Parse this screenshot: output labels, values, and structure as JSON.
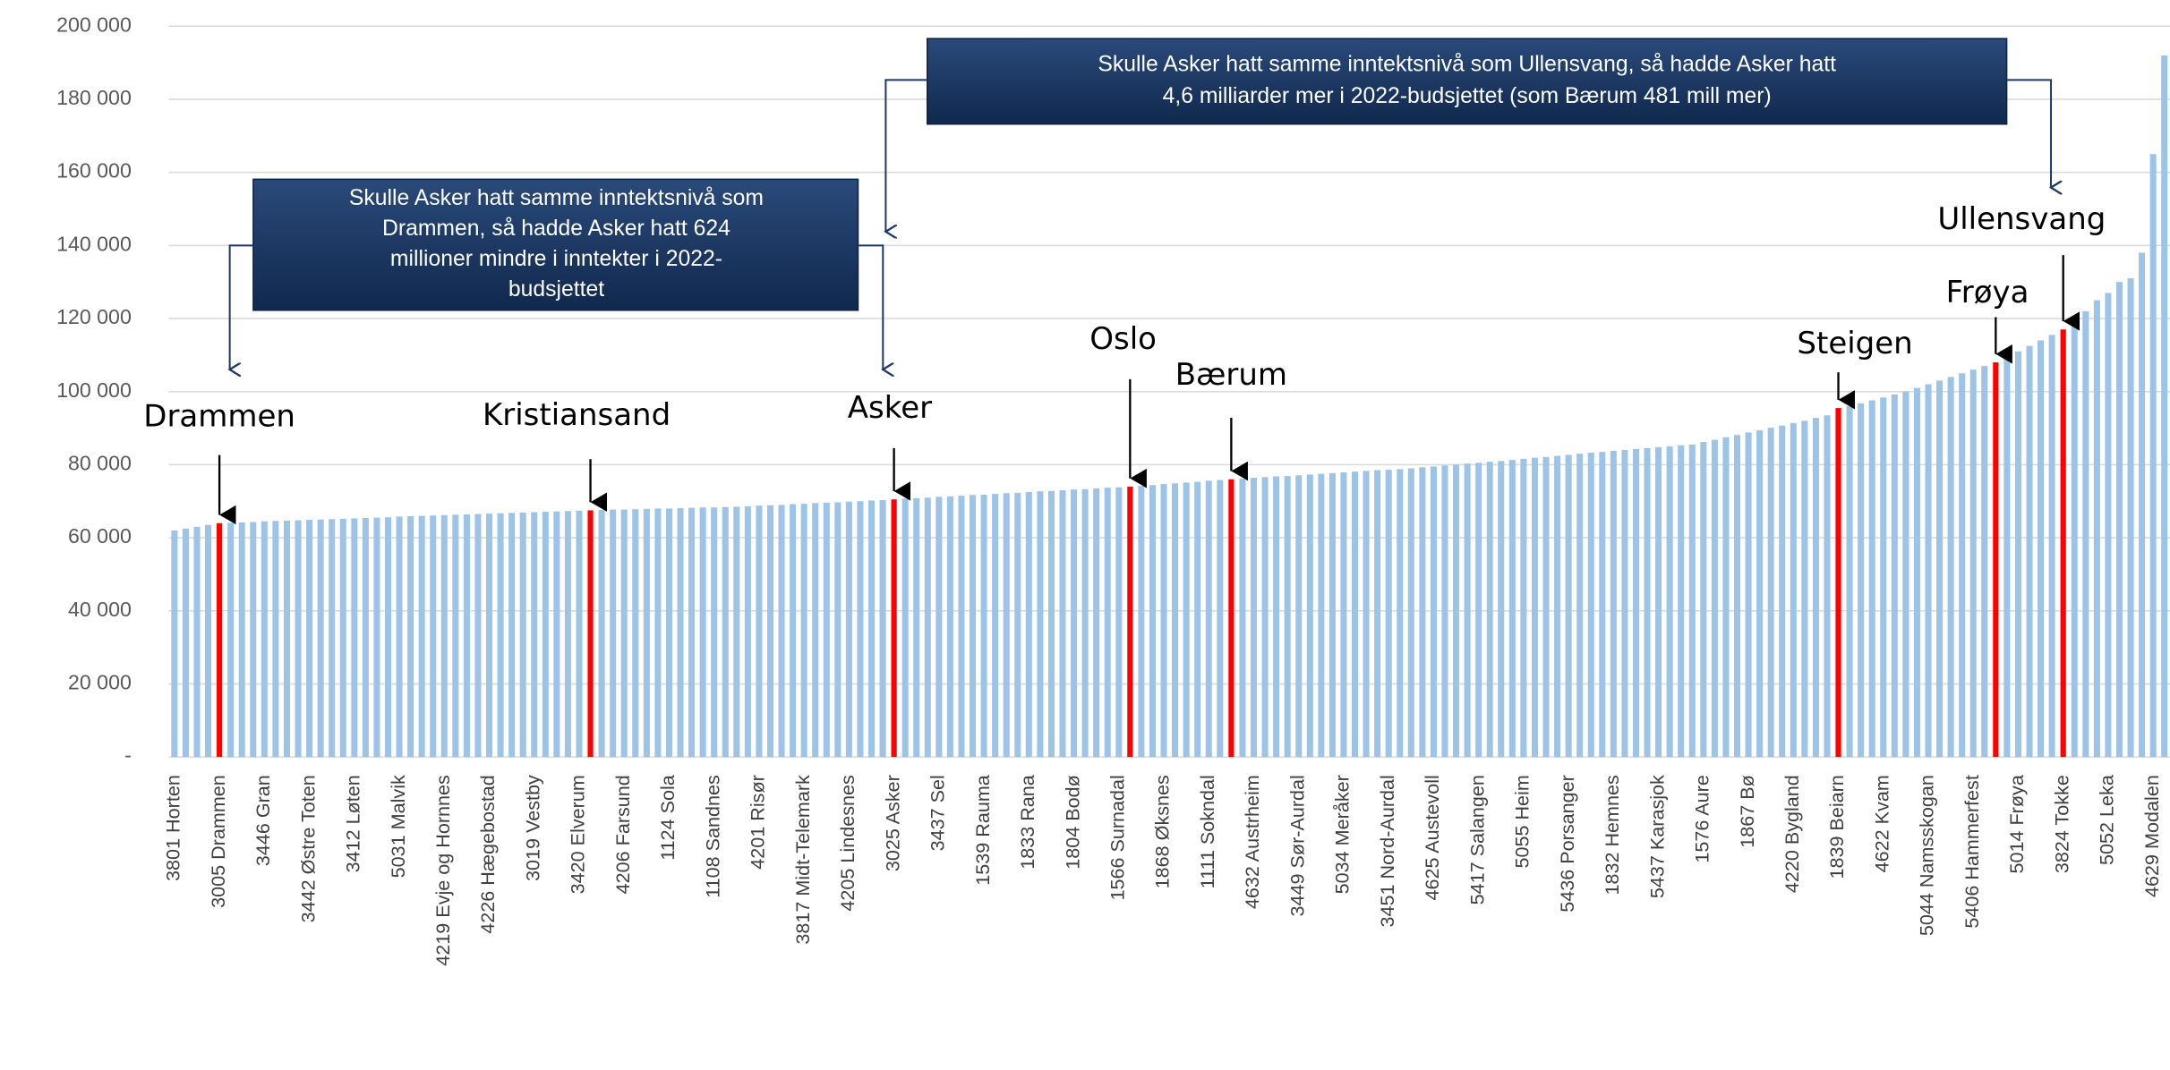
{
  "chart_data": {
    "type": "bar",
    "categories": [
      "3801 Horten",
      null,
      null,
      null,
      "3005 Drammen",
      null,
      null,
      null,
      "3446 Gran",
      null,
      null,
      null,
      "3442 Østre Toten",
      null,
      null,
      null,
      "3412 Løten",
      null,
      null,
      null,
      "5031 Malvik",
      null,
      null,
      null,
      "4219 Evje og Hornnes",
      null,
      null,
      null,
      "4226 Hægebostad",
      null,
      null,
      null,
      "3019 Vestby",
      null,
      null,
      null,
      "3420 Elverum",
      null,
      null,
      null,
      "4206 Farsund",
      null,
      null,
      null,
      "1124 Sola",
      null,
      null,
      null,
      "1108 Sandnes",
      null,
      null,
      null,
      "4201 Risør",
      null,
      null,
      null,
      "3817 Midt-Telemark",
      null,
      null,
      null,
      "4205 Lindesnes",
      null,
      null,
      null,
      "3025 Asker",
      null,
      null,
      null,
      "3437 Sel",
      null,
      null,
      null,
      "1539 Rauma",
      null,
      null,
      null,
      "1833 Rana",
      null,
      null,
      null,
      "1804 Bodø",
      null,
      null,
      null,
      "1566 Surnadal",
      null,
      null,
      null,
      "1868 Øksnes",
      null,
      null,
      null,
      "1111 Sokndal",
      null,
      null,
      null,
      "4632 Austrheim",
      null,
      null,
      null,
      "3449 Sør-Aurdal",
      null,
      null,
      null,
      "5034 Meråker",
      null,
      null,
      null,
      "3451 Nord-Aurdal",
      null,
      null,
      null,
      "4625 Austevoll",
      null,
      null,
      null,
      "5417 Salangen",
      null,
      null,
      null,
      "5055 Heim",
      null,
      null,
      null,
      "5436 Porsanger",
      null,
      null,
      null,
      "1832 Hemnes",
      null,
      null,
      null,
      "5437 Karasjok",
      null,
      null,
      null,
      "1576 Aure",
      null,
      null,
      null,
      "1867 Bø",
      null,
      null,
      null,
      "4220 Bygland",
      null,
      null,
      null,
      "1839 Beiarn",
      null,
      null,
      null,
      "4622 Kvam",
      null,
      null,
      null,
      "5044 Namsskogan",
      null,
      null,
      null,
      "5406 Hammerfest",
      null,
      null,
      null,
      "5014 Frøya",
      null,
      null,
      null,
      "3824 Tokke",
      null,
      null,
      null,
      "5052 Leka",
      null,
      null,
      null,
      "4629 Modalen",
      null
    ],
    "values": [
      62000,
      62500,
      63000,
      63500,
      64000,
      64100,
      64200,
      64300,
      64500,
      64600,
      64700,
      64800,
      64900,
      65000,
      65100,
      65200,
      65300,
      65400,
      65500,
      65600,
      65800,
      65900,
      66000,
      66100,
      66200,
      66300,
      66400,
      66500,
      66600,
      66700,
      66800,
      66900,
      67000,
      67100,
      67200,
      67300,
      67400,
      67500,
      67600,
      67700,
      67700,
      67800,
      67900,
      68000,
      68000,
      68100,
      68200,
      68300,
      68300,
      68400,
      68500,
      68600,
      68800,
      68900,
      69000,
      69200,
      69300,
      69500,
      69600,
      69700,
      69900,
      70000,
      70200,
      70300,
      70500,
      70700,
      70800,
      71000,
      71200,
      71300,
      71500,
      71700,
      71800,
      72000,
      72200,
      72300,
      72500,
      72700,
      72800,
      73000,
      73200,
      73300,
      73500,
      73700,
      73800,
      74000,
      74200,
      74400,
      74700,
      74900,
      75100,
      75300,
      75600,
      75800,
      76000,
      76200,
      76400,
      76600,
      76800,
      76900,
      77100,
      77300,
      77500,
      77700,
      77900,
      78100,
      78300,
      78500,
      78600,
      78800,
      79000,
      79300,
      79500,
      79800,
      80000,
      80300,
      80500,
      80800,
      81000,
      81300,
      81600,
      81900,
      82100,
      82400,
      82700,
      83000,
      83300,
      83500,
      83800,
      84000,
      84300,
      84500,
      84800,
      85000,
      85300,
      85500,
      86200,
      86800,
      87500,
      88100,
      88800,
      89400,
      90100,
      90700,
      91400,
      92000,
      92800,
      93500,
      95500,
      96000,
      96800,
      97600,
      98400,
      99200,
      100000,
      101000,
      102000,
      103000,
      104000,
      105000,
      106000,
      107000,
      108000,
      109500,
      111000,
      112500,
      114000,
      115500,
      117000,
      118000,
      122000,
      125000,
      127000,
      130000,
      131000,
      138000,
      165000,
      192000
    ],
    "color": "#9dc3e6",
    "highlight_color": "#ff0000",
    "ylim": [
      0,
      200000
    ],
    "yticks": [
      {
        "value": 0,
        "label": "-"
      },
      {
        "value": 20000,
        "label": "20 000"
      },
      {
        "value": 40000,
        "label": "40 000"
      },
      {
        "value": 60000,
        "label": "60 000"
      },
      {
        "value": 80000,
        "label": "80 000"
      },
      {
        "value": 100000,
        "label": "100 000"
      },
      {
        "value": 120000,
        "label": "120 000"
      },
      {
        "value": 140000,
        "label": "140 000"
      },
      {
        "value": 160000,
        "label": "160 000"
      },
      {
        "value": 180000,
        "label": "180 000"
      },
      {
        "value": 200000,
        "label": "200 000"
      }
    ],
    "grid": true,
    "annotations": [
      {
        "text": "Drammen",
        "category_index": 4
      },
      {
        "text": "Kristiansand",
        "category_index": 37
      },
      {
        "text": "Asker",
        "category_index": 64
      },
      {
        "text": "Oslo",
        "category_index": 85
      },
      {
        "text": "Bærum",
        "category_index": 94
      },
      {
        "text": "Steigen",
        "category_index": 148
      },
      {
        "text": "Frøya",
        "category_index": 162
      },
      {
        "text": "Ullensvang",
        "category_index": 168
      }
    ],
    "callouts": [
      {
        "lines": [
          "Skulle Asker hatt samme inntektsnivå som",
          "Drammen, så hadde Asker hatt 624",
          "millioner mindre i inntekter i 2022-",
          "budsjettet"
        ]
      },
      {
        "lines": [
          "Skulle Asker hatt samme inntektsnivå som Ullensvang, så hadde Asker hatt",
          "4,6 milliarder mer i 2022-budsjettet (som Bærum 481 mill mer)"
        ]
      }
    ]
  }
}
